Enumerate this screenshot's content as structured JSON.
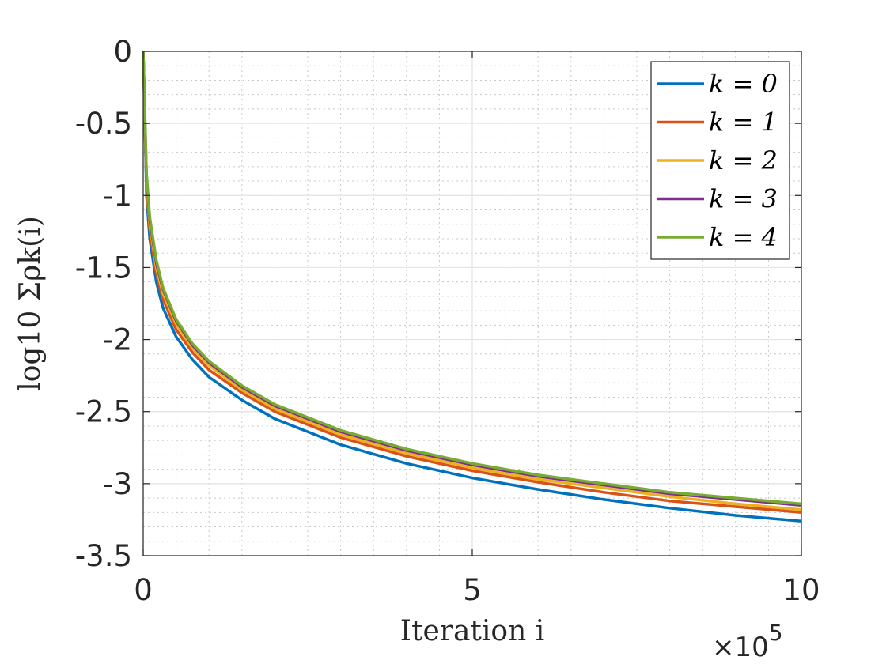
{
  "chart_data": {
    "type": "line",
    "title": "",
    "xlabel": "Iteration i",
    "ylabel": "log10 Σρk(i)",
    "x_multiplier": "×10",
    "x_multiplier_exp": "5",
    "xlim": [
      0,
      10
    ],
    "ylim": [
      -3.5,
      0
    ],
    "xticks": [
      0,
      5,
      10
    ],
    "xtick_labels": [
      "0",
      "5",
      "10"
    ],
    "yticks": [
      0,
      -0.5,
      -1,
      -1.5,
      -2,
      -2.5,
      -3,
      -3.5
    ],
    "ytick_labels": [
      "0",
      "-0.5",
      "-1",
      "-1.5",
      "-2",
      "-2.5",
      "-3",
      "-3.5"
    ],
    "grid": true,
    "minor_grid": true,
    "legend_position": "top-right",
    "x": [
      0,
      0.05,
      0.1,
      0.2,
      0.3,
      0.5,
      0.75,
      1,
      1.5,
      2,
      3,
      4,
      5,
      6,
      7,
      8,
      9,
      10
    ],
    "series": [
      {
        "name": "k = 0",
        "color": "#0072BD",
        "values": [
          0,
          -1.0,
          -1.3,
          -1.6,
          -1.78,
          -1.98,
          -2.14,
          -2.26,
          -2.42,
          -2.55,
          -2.73,
          -2.86,
          -2.96,
          -3.04,
          -3.11,
          -3.17,
          -3.22,
          -3.26
        ]
      },
      {
        "name": "k = 1",
        "color": "#D95319",
        "values": [
          0,
          -0.94,
          -1.24,
          -1.54,
          -1.72,
          -1.93,
          -2.09,
          -2.21,
          -2.37,
          -2.5,
          -2.68,
          -2.81,
          -2.91,
          -2.99,
          -3.06,
          -3.12,
          -3.16,
          -3.2
        ]
      },
      {
        "name": "k = 2",
        "color": "#EDB120",
        "values": [
          0,
          -0.9,
          -1.2,
          -1.5,
          -1.68,
          -1.89,
          -2.06,
          -2.18,
          -2.35,
          -2.48,
          -2.66,
          -2.79,
          -2.89,
          -2.97,
          -3.03,
          -3.09,
          -3.14,
          -3.18
        ]
      },
      {
        "name": "k = 3",
        "color": "#7E2F8E",
        "values": [
          0,
          -0.87,
          -1.17,
          -1.47,
          -1.65,
          -1.87,
          -2.04,
          -2.16,
          -2.33,
          -2.46,
          -2.64,
          -2.77,
          -2.87,
          -2.95,
          -3.01,
          -3.07,
          -3.11,
          -3.15
        ]
      },
      {
        "name": "k = 4",
        "color": "#77AC30",
        "values": [
          0,
          -0.85,
          -1.15,
          -1.45,
          -1.64,
          -1.86,
          -2.03,
          -2.15,
          -2.32,
          -2.45,
          -2.63,
          -2.76,
          -2.86,
          -2.94,
          -3.0,
          -3.06,
          -3.1,
          -3.14
        ]
      }
    ]
  }
}
